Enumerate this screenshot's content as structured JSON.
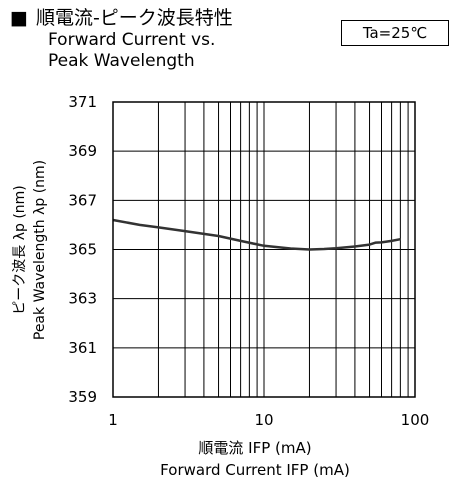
{
  "header": {
    "bullet": "■",
    "title_jp": "順電流-ピーク波長特性",
    "title_en_line1": "Forward Current vs.",
    "title_en_line2": "Peak Wavelength",
    "condition": "Ta=25℃"
  },
  "chart_data": {
    "type": "line",
    "x_scale": "log",
    "xlim": [
      1,
      100
    ],
    "ylim": [
      359,
      371
    ],
    "x_ticks": [
      1,
      10,
      100
    ],
    "x_tick_labels": [
      "1",
      "10",
      "100"
    ],
    "y_ticks": [
      371,
      369,
      367,
      365,
      363,
      361,
      359
    ],
    "y_tick_labels": [
      "371",
      "369",
      "367",
      "365",
      "363",
      "361",
      "359"
    ],
    "grid": true,
    "xlabel_jp": "順電流 IFP (mA)",
    "xlabel_en": "Forward Current IFP (mA)",
    "ylabel_jp": "ピーク波長 λp (nm)",
    "ylabel_en": "Peak Wavelength λp (nm)",
    "series": [
      {
        "x": [
          1,
          1.5,
          2,
          3,
          5,
          7,
          10,
          15,
          20,
          25,
          30,
          40,
          50,
          55,
          60,
          70,
          80
        ],
        "y": [
          366.2,
          366.0,
          365.9,
          365.75,
          365.55,
          365.35,
          365.15,
          365.04,
          365.0,
          365.02,
          365.05,
          365.12,
          365.2,
          365.28,
          365.29,
          365.35,
          365.42
        ],
        "color": "#333333"
      }
    ]
  }
}
